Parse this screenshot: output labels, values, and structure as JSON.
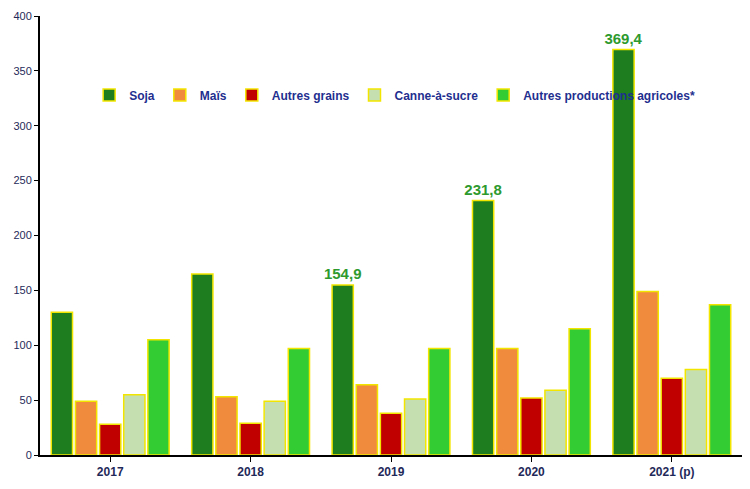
{
  "chart_data": {
    "type": "bar",
    "categories": [
      "2017",
      "2018",
      "2019",
      "2020",
      "2021 (p)"
    ],
    "series": [
      {
        "name": "Soja",
        "color": "#1e7d1e",
        "values": [
          130,
          165,
          154.9,
          231.8,
          369.4
        ],
        "value_labels": [
          null,
          null,
          "154,9",
          "231,8",
          "369,4"
        ]
      },
      {
        "name": "Maïs",
        "color": "#f08a3c",
        "values": [
          49,
          53,
          64,
          97,
          149
        ]
      },
      {
        "name": "Autres grains",
        "color": "#c00000",
        "values": [
          28,
          29,
          38,
          52,
          70
        ]
      },
      {
        "name": "Canne-à-sucre",
        "color": "#c6dfb0",
        "values": [
          55,
          49,
          51,
          59,
          78
        ]
      },
      {
        "name": "Autres productions agricoles*",
        "color": "#33cc33",
        "values": [
          105,
          97,
          97,
          115,
          137
        ]
      }
    ],
    "ylim": [
      0,
      400
    ],
    "yticks": [
      0,
      50,
      100,
      150,
      200,
      250,
      300,
      350,
      400
    ],
    "grid": false,
    "legend": "top-left",
    "data_labels": true
  }
}
